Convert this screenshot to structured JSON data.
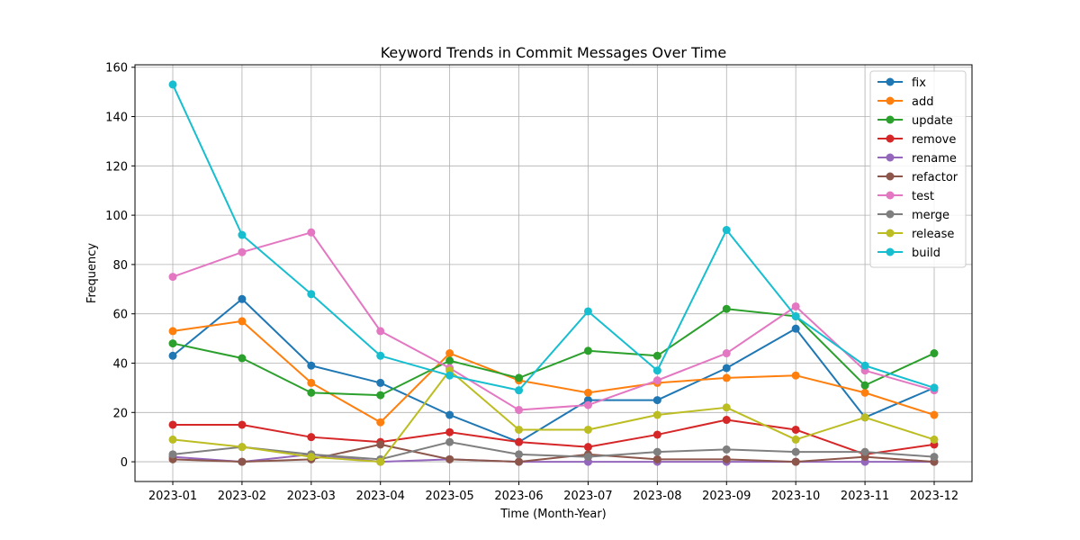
{
  "chart_data": {
    "type": "line",
    "title": "Keyword Trends in Commit Messages Over Time",
    "xlabel": "Time (Month-Year)",
    "ylabel": "Frequency",
    "categories": [
      "2023-01",
      "2023-02",
      "2023-03",
      "2023-04",
      "2023-05",
      "2023-06",
      "2023-07",
      "2023-08",
      "2023-09",
      "2023-10",
      "2023-11",
      "2023-12"
    ],
    "ylim": [
      -8,
      161
    ],
    "yticks": [
      0,
      20,
      40,
      60,
      80,
      100,
      120,
      140,
      160
    ],
    "grid": true,
    "legend_position": "top-right",
    "series": [
      {
        "name": "fix",
        "color": "#1f77b4",
        "values": [
          43,
          66,
          39,
          32,
          19,
          8,
          25,
          25,
          38,
          54,
          18,
          30
        ]
      },
      {
        "name": "add",
        "color": "#ff7f0e",
        "values": [
          53,
          57,
          32,
          16,
          44,
          33,
          28,
          32,
          34,
          35,
          28,
          19
        ]
      },
      {
        "name": "update",
        "color": "#2ca02c",
        "values": [
          48,
          42,
          28,
          27,
          41,
          34,
          45,
          43,
          62,
          59,
          31,
          44
        ]
      },
      {
        "name": "remove",
        "color": "#d62728",
        "values": [
          15,
          15,
          10,
          8,
          12,
          8,
          6,
          11,
          17,
          13,
          3,
          7
        ]
      },
      {
        "name": "rename",
        "color": "#9467bd",
        "values": [
          2,
          0,
          3,
          0,
          1,
          0,
          0,
          0,
          0,
          0,
          0,
          0
        ]
      },
      {
        "name": "refactor",
        "color": "#8c564b",
        "values": [
          1,
          0,
          1,
          7,
          1,
          0,
          3,
          1,
          1,
          0,
          2,
          0
        ]
      },
      {
        "name": "test",
        "color": "#e377c2",
        "values": [
          75,
          85,
          93,
          53,
          38,
          21,
          23,
          33,
          44,
          63,
          37,
          29
        ]
      },
      {
        "name": "merge",
        "color": "#7f7f7f",
        "values": [
          3,
          6,
          3,
          1,
          8,
          3,
          2,
          4,
          5,
          4,
          4,
          2
        ]
      },
      {
        "name": "release",
        "color": "#bcbd22",
        "values": [
          9,
          6,
          2,
          0,
          37,
          13,
          13,
          19,
          22,
          9,
          18,
          9
        ]
      },
      {
        "name": "build",
        "color": "#17becf",
        "values": [
          153,
          92,
          68,
          43,
          35,
          29,
          61,
          37,
          94,
          59,
          39,
          30
        ]
      }
    ]
  }
}
